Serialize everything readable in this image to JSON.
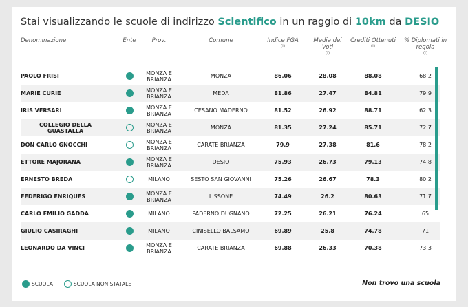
{
  "header": {
    "title_parts": [
      "Stai visualizzando le scuole di indirizzo ",
      "Scientifico",
      " in un raggio di ",
      "10km",
      " da ",
      "DESIO"
    ]
  },
  "table": {
    "columns": [
      "Denominazione",
      "Ente",
      "Prov.",
      "Comune",
      "Indice FGA",
      "Media dei Voti",
      "Crediti Ottenuti",
      "% Diplomati in regola"
    ],
    "info_marker": "(i)",
    "rows": [
      {
        "name": "PAOLO FRISI",
        "statale": true,
        "prov": "MONZA E BRIANZA",
        "comune": "MONZA",
        "fga": 86.06,
        "voti": 28.08,
        "crediti": 88.08,
        "diplomati": 68.2
      },
      {
        "name": "MARIE CURIE",
        "statale": true,
        "prov": "MONZA E BRIANZA",
        "comune": "MEDA",
        "fga": 81.86,
        "voti": 27.47,
        "crediti": 84.81,
        "diplomati": 79.9
      },
      {
        "name": "IRIS VERSARI",
        "statale": true,
        "prov": "MONZA E BRIANZA",
        "comune": "CESANO MADERNO",
        "fga": 81.52,
        "voti": 26.92,
        "crediti": 88.71,
        "diplomati": 62.3
      },
      {
        "name": "COLLEGIO DELLA GUASTALLA",
        "statale": false,
        "prov": "MONZA E BRIANZA",
        "comune": "MONZA",
        "fga": 81.35,
        "voti": 27.24,
        "crediti": 85.71,
        "diplomati": 72.7
      },
      {
        "name": "DON CARLO GNOCCHI",
        "statale": false,
        "prov": "MONZA E BRIANZA",
        "comune": "CARATE BRIANZA",
        "fga": 79.9,
        "voti": 27.38,
        "crediti": 81.6,
        "diplomati": 78.2
      },
      {
        "name": "ETTORE MAJORANA",
        "statale": true,
        "prov": "MONZA E BRIANZA",
        "comune": "DESIO",
        "fga": 75.93,
        "voti": 26.73,
        "crediti": 79.13,
        "diplomati": 74.8
      },
      {
        "name": "ERNESTO BREDA",
        "statale": false,
        "prov": "MILANO",
        "comune": "SESTO SAN GIOVANNI",
        "fga": 75.26,
        "voti": 26.67,
        "crediti": 78.3,
        "diplomati": 80.2
      },
      {
        "name": "FEDERIGO ENRIQUES",
        "statale": true,
        "prov": "MONZA E BRIANZA",
        "comune": "LISSONE",
        "fga": 74.49,
        "voti": 26.2,
        "crediti": 80.63,
        "diplomati": 71.7
      },
      {
        "name": "CARLO EMILIO GADDA",
        "statale": true,
        "prov": "MILANO",
        "comune": "PADERNO DUGNANO",
        "fga": 72.25,
        "voti": 26.21,
        "crediti": 76.24,
        "diplomati": 65
      },
      {
        "name": "GIULIO CASIRAGHI",
        "statale": true,
        "prov": "MILANO",
        "comune": "CINISELLO BALSAMO",
        "fga": 69.89,
        "voti": 25.8,
        "crediti": 74.78,
        "diplomati": 71
      },
      {
        "name": "LEONARDO DA VINCI",
        "statale": true,
        "prov": "MONZA E BRIANZA",
        "comune": "CARATE BRIANZA",
        "fga": 69.88,
        "voti": 26.33,
        "crediti": 70.38,
        "diplomati": 73.3
      }
    ]
  },
  "legend": {
    "statale": "SCUOLA",
    "non_statale": "SCUOLA NON STATALE"
  },
  "link": "Non trovo una scuola"
}
